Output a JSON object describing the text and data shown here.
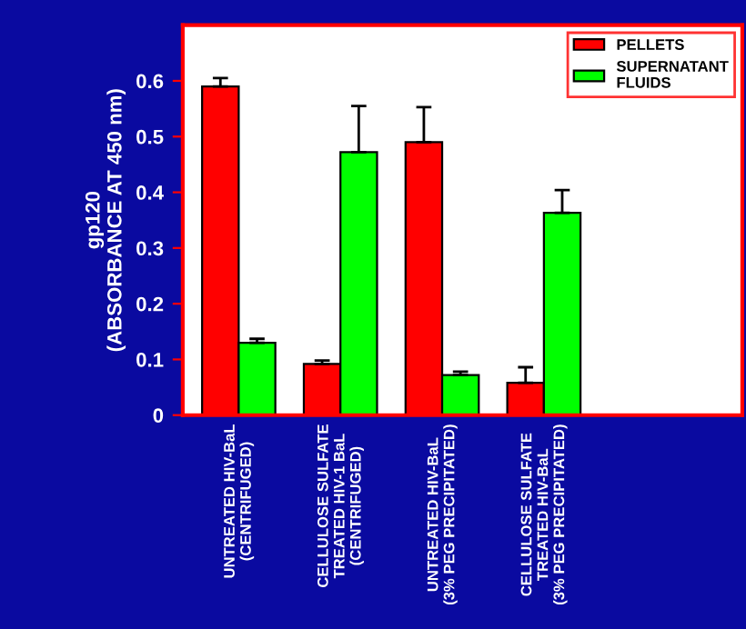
{
  "chart_data": {
    "type": "bar",
    "ylabel": "gp120\n(ABSORBANCE AT 450 nm)",
    "categories": [
      "UNTREATED HIV-BaL\n(CENTRIFUGED)",
      "CELLULOSE SULFATE\nTREATED HIV-1 BaL\n(CENTRIFUGED)",
      "UNTREATED HIV-BaL\n(3% PEG PRECIPITATED)",
      "CELLULOSE SULFATE\nTREATED HIV-BaL\n(3% PEG PRECIPITATED)"
    ],
    "series": [
      {
        "name": "PELLETS",
        "color": "#ff0000",
        "values": [
          0.59,
          0.092,
          0.49,
          0.058
        ],
        "errors": [
          [
            0.59,
            0.605
          ],
          [
            0.092,
            0.098
          ],
          [
            0.49,
            0.553
          ],
          [
            0.058,
            0.086
          ]
        ]
      },
      {
        "name": "SUPERNATANT\nFLUIDS",
        "color": "#00ff00",
        "values": [
          0.13,
          0.472,
          0.072,
          0.363
        ],
        "errors": [
          [
            0.13,
            0.137
          ],
          [
            0.472,
            0.555
          ],
          [
            0.072,
            0.078
          ],
          [
            0.363,
            0.404
          ]
        ]
      }
    ],
    "ylim": [
      0,
      0.7
    ],
    "yticks": [
      0,
      0.1,
      0.2,
      0.3,
      0.4,
      0.5,
      0.6
    ],
    "legend": "top right",
    "grid": false
  }
}
